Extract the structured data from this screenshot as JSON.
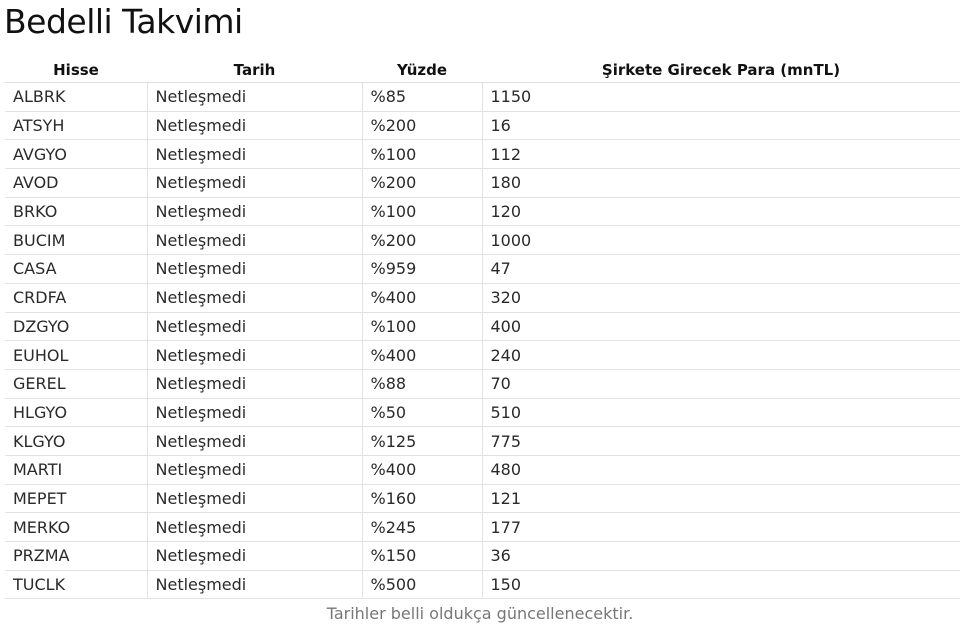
{
  "title": "Bedelli Takvimi",
  "columns": [
    "Hisse",
    "Tarih",
    "Yüzde",
    "Şirkete Girecek Para (mnTL)"
  ],
  "rows": [
    [
      "ALBRK",
      "Netleşmedi",
      "%85",
      "1150"
    ],
    [
      "ATSYH",
      "Netleşmedi",
      "%200",
      "16"
    ],
    [
      "AVGYO",
      "Netleşmedi",
      "%100",
      "112"
    ],
    [
      "AVOD",
      "Netleşmedi",
      "%200",
      "180"
    ],
    [
      "BRKO",
      "Netleşmedi",
      "%100",
      "120"
    ],
    [
      "BUCIM",
      "Netleşmedi",
      "%200",
      "1000"
    ],
    [
      "CASA",
      "Netleşmedi",
      "%959",
      "47"
    ],
    [
      "CRDFA",
      "Netleşmedi",
      "%400",
      "320"
    ],
    [
      "DZGYO",
      "Netleşmedi",
      "%100",
      "400"
    ],
    [
      "EUHOL",
      "Netleşmedi",
      "%400",
      "240"
    ],
    [
      "GEREL",
      "Netleşmedi",
      "%88",
      "70"
    ],
    [
      "HLGYO",
      "Netleşmedi",
      "%50",
      "510"
    ],
    [
      "KLGYO",
      "Netleşmedi",
      "%125",
      "775"
    ],
    [
      "MARTI",
      "Netleşmedi",
      "%400",
      "480"
    ],
    [
      "MEPET",
      "Netleşmedi",
      "%160",
      "121"
    ],
    [
      "MERKO",
      "Netleşmedi",
      "%245",
      "177"
    ],
    [
      "PRZMA",
      "Netleşmedi",
      "%150",
      "36"
    ],
    [
      "TUCLK",
      "Netleşmedi",
      "%500",
      "150"
    ]
  ],
  "footer": "Tarihler belli oldukça güncellenecektir."
}
